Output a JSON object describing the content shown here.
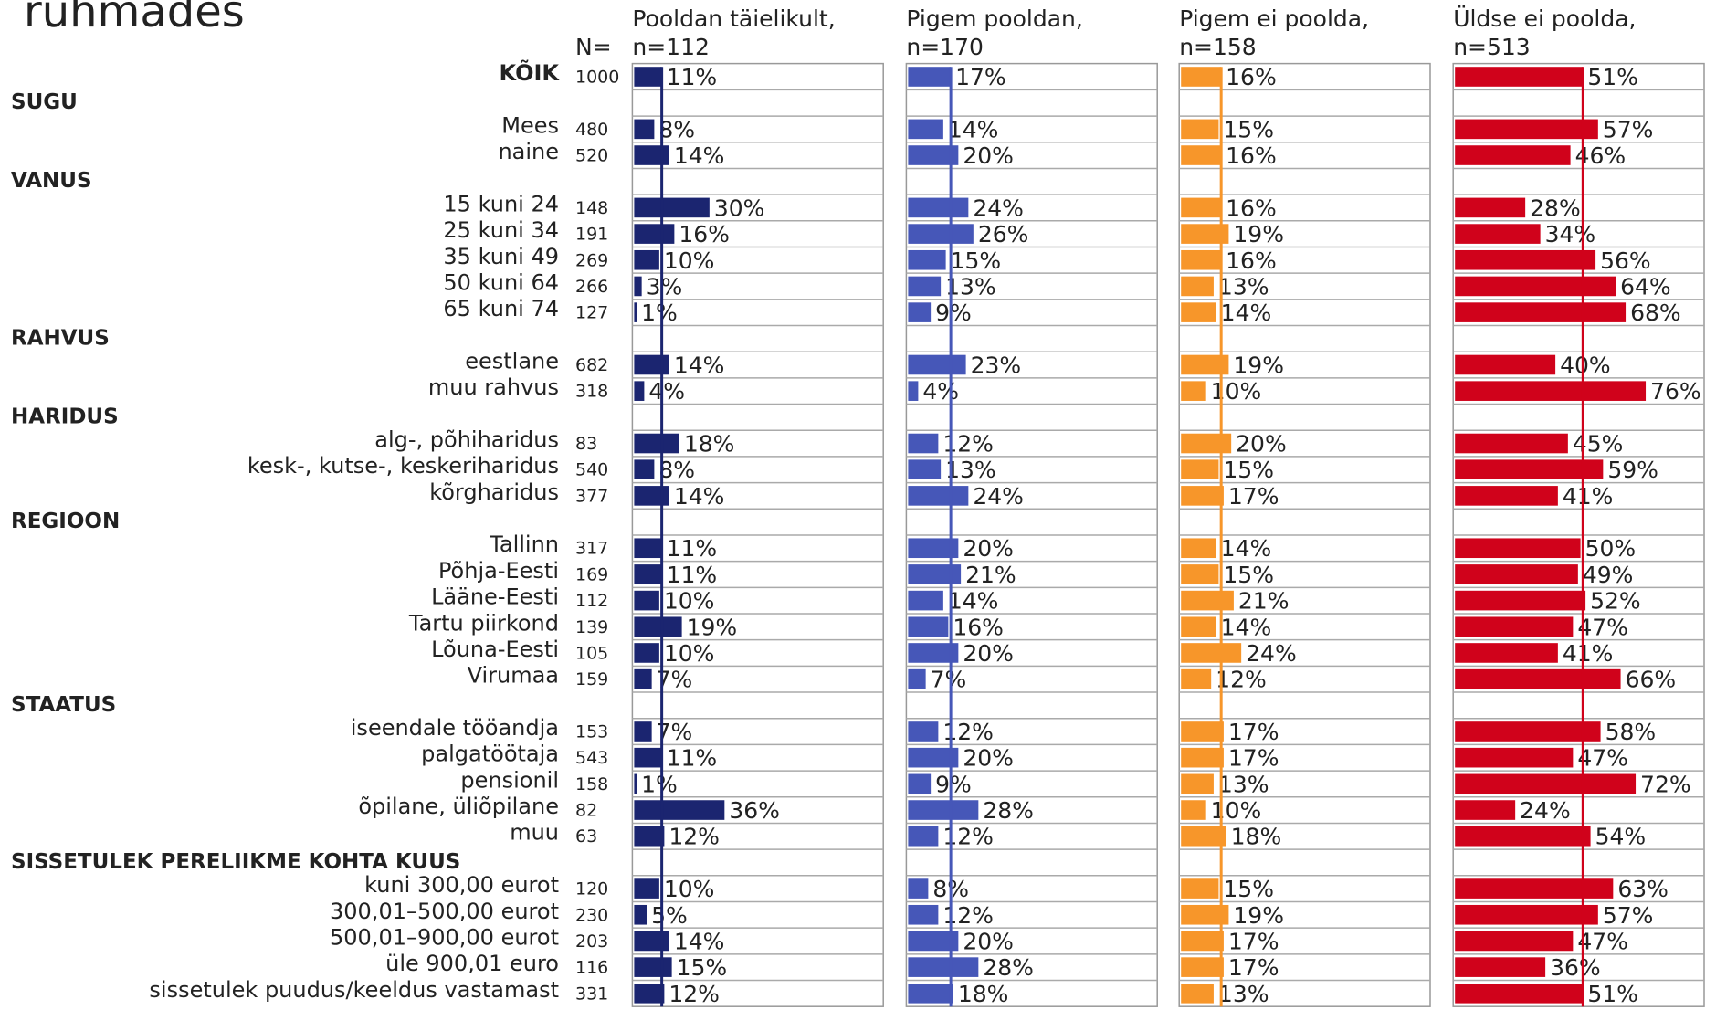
{
  "chart_data": {
    "type": "bar",
    "orientation": "horizontal",
    "title": "rühmades",
    "n_header": "N=",
    "xlim": [
      0,
      100
    ],
    "categories": [
      "KÕIK",
      "SUGU",
      "Mees",
      "naine",
      "VANUS",
      "15 kuni 24",
      "25 kuni 34",
      "35 kuni 49",
      "50 kuni 64",
      "65 kuni 74",
      "RAHVUS",
      "eestlane",
      "muu rahvus",
      "HARIDUS",
      "alg-, põhiharidus",
      "kesk-, kutse-, keskeriharidus",
      "kõrgharidus",
      "REGIOON",
      "Tallinn",
      "Põhja-Eesti",
      "Lääne-Eesti",
      "Tartu piirkond",
      "Lõuna-Eesti",
      "Virumaa",
      "STAATUS",
      "iseendale tööandja",
      "palgatöötaja",
      "pensionil",
      "õpilane, üliõpilane",
      "muu",
      "SISSETULEK PERELIIKME KOHTA KUUS",
      "kuni 300,00 eurot",
      "300,01–500,00 eurot",
      "500,01–900,00 eurot",
      "üle 900,01 euro",
      "sissetulek puudus/keeldus vastamast"
    ],
    "n": [
      1000,
      null,
      480,
      520,
      null,
      148,
      191,
      269,
      266,
      127,
      null,
      682,
      318,
      null,
      83,
      540,
      377,
      null,
      317,
      169,
      112,
      139,
      105,
      159,
      null,
      153,
      543,
      158,
      82,
      63,
      null,
      120,
      230,
      203,
      116,
      331
    ],
    "series": [
      {
        "name": "Pooldan täielikult,",
        "total": {
          "value": 112,
          "label": "n=112"
        },
        "color": "#1b2570",
        "values": [
          11,
          null,
          8,
          14,
          null,
          30,
          16,
          10,
          3,
          1,
          null,
          14,
          4,
          null,
          18,
          8,
          14,
          null,
          11,
          11,
          10,
          19,
          10,
          7,
          null,
          7,
          11,
          1,
          36,
          12,
          null,
          10,
          5,
          14,
          15,
          12
        ],
        "value_labels": [
          "11%",
          null,
          "8%",
          "14%",
          null,
          "30%",
          "16%",
          "10%",
          "3%",
          "1%",
          null,
          "14%",
          "4%",
          null,
          "18%",
          "8%",
          "14%",
          null,
          "11%",
          "11%",
          "10%",
          "19%",
          "10%",
          "7%",
          null,
          "7%",
          "11%",
          "1%",
          "36%",
          "12%",
          null,
          "10%",
          "5%",
          "14%",
          "15%",
          "12%"
        ]
      },
      {
        "name": "Pigem pooldan,",
        "total": {
          "value": 170,
          "label": "n=170"
        },
        "color": "#4657b8",
        "values": [
          17,
          null,
          14,
          20,
          null,
          24,
          26,
          15,
          13,
          9,
          null,
          23,
          4,
          null,
          12,
          13,
          24,
          null,
          20,
          21,
          14,
          16,
          20,
          7,
          null,
          12,
          20,
          9,
          28,
          12,
          null,
          8,
          12,
          20,
          28,
          18
        ],
        "value_labels": [
          "17%",
          null,
          "14%",
          "20%",
          null,
          "24%",
          "26%",
          "15%",
          "13%",
          "9%",
          null,
          "23%",
          "4%",
          null,
          "12%",
          "13%",
          "24%",
          null,
          "20%",
          "21%",
          "14%",
          "16%",
          "20%",
          "7%",
          null,
          "12%",
          "20%",
          "9%",
          "28%",
          "12%",
          null,
          "8%",
          "12%",
          "20%",
          "28%",
          "18%"
        ]
      },
      {
        "name": "Pigem ei poolda,",
        "total": {
          "value": 158,
          "label": "n=158"
        },
        "color": "#f7962a",
        "values": [
          16,
          null,
          15,
          16,
          null,
          16,
          19,
          16,
          13,
          14,
          null,
          19,
          10,
          null,
          20,
          15,
          17,
          null,
          14,
          15,
          21,
          14,
          24,
          12,
          null,
          17,
          17,
          13,
          10,
          18,
          null,
          15,
          19,
          17,
          17,
          13
        ],
        "value_labels": [
          "16%",
          null,
          "15%",
          "16%",
          null,
          "16%",
          "19%",
          "16%",
          "13%",
          "14%",
          null,
          "19%",
          "10%",
          null,
          "20%",
          "15%",
          "17%",
          null,
          "14%",
          "15%",
          "21%",
          "14%",
          "24%",
          "12%",
          null,
          "17%",
          "17%",
          "13%",
          "10%",
          "18%",
          null,
          "15%",
          "19%",
          "17%",
          "17%",
          "13%"
        ]
      },
      {
        "name": "Üldse ei poolda,",
        "total": {
          "value": 513,
          "label": "n=513"
        },
        "color": "#d0021b",
        "values": [
          51,
          null,
          57,
          46,
          null,
          28,
          34,
          56,
          64,
          68,
          null,
          40,
          76,
          null,
          45,
          59,
          41,
          null,
          50,
          49,
          52,
          47,
          41,
          66,
          null,
          58,
          47,
          72,
          24,
          54,
          null,
          63,
          57,
          47,
          36,
          51
        ],
        "value_labels": [
          "51%",
          null,
          "57%",
          "46%",
          null,
          "28%",
          "34%",
          "56%",
          "64%",
          "68%",
          null,
          "40%",
          "76%",
          null,
          "45%",
          "59%",
          "41%",
          null,
          "50%",
          "49%",
          "52%",
          "47%",
          "41%",
          "66%",
          null,
          "58%",
          "47%",
          "72%",
          "24%",
          "54%",
          null,
          "63%",
          "57%",
          "47%",
          "36%",
          "51%"
        ]
      }
    ]
  }
}
